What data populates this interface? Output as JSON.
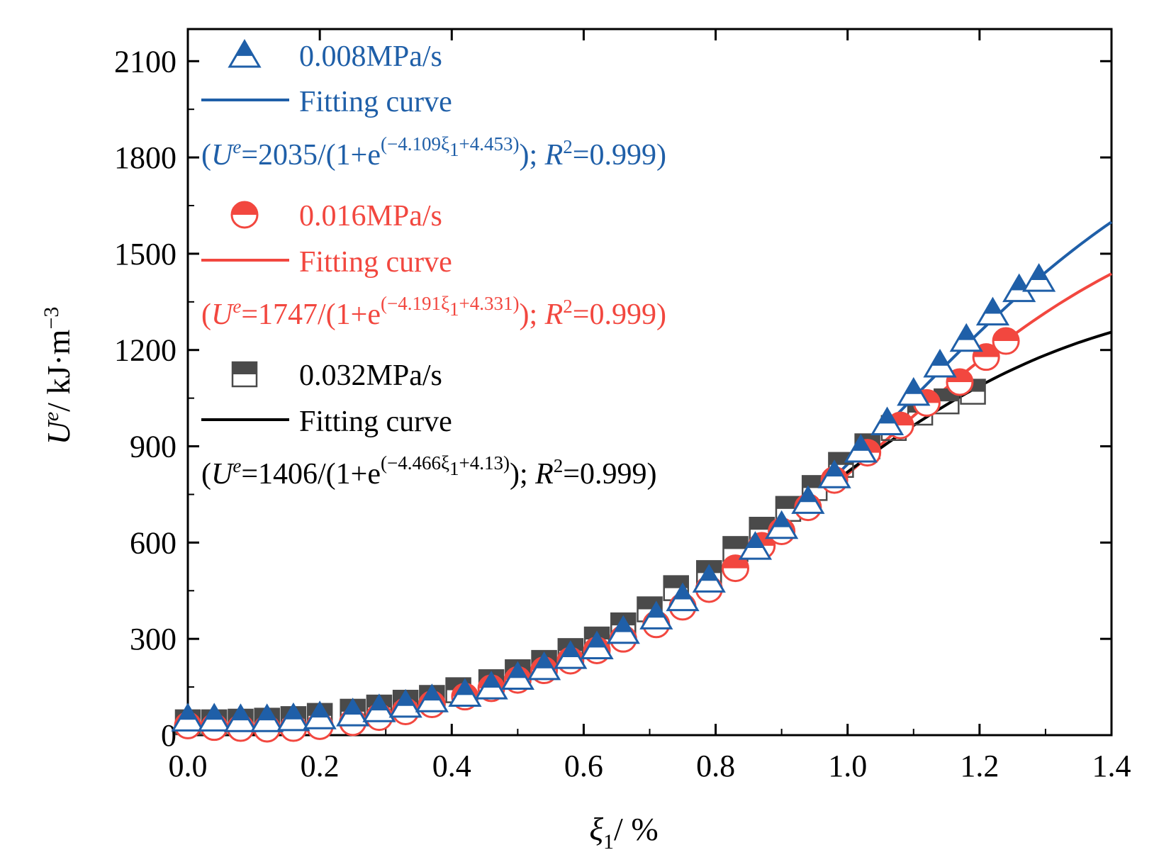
{
  "chart_data": {
    "type": "scatter",
    "title": "",
    "xlabel": "ξ1/ %",
    "ylabel": "Ue/ kJ·m−3",
    "xlim": [
      0.0,
      1.4
    ],
    "ylim": [
      0,
      2200
    ],
    "xticks": [
      0.0,
      0.2,
      0.4,
      0.6,
      0.8,
      1.0,
      1.2,
      1.4
    ],
    "xtick_labels": [
      "0.0",
      "0.2",
      "0.4",
      "0.6",
      "0.8",
      "1.0",
      "1.2",
      "1.4"
    ],
    "yticks": [
      0,
      300,
      600,
      900,
      1200,
      1500,
      1800,
      2100
    ],
    "ytick_labels": [
      "0",
      "300",
      "600",
      "900",
      "1200",
      "1500",
      "1800",
      "2100"
    ],
    "series": [
      {
        "name": "0.008MPa/s",
        "marker": "half-filled triangle",
        "color": "#1f5fa8",
        "x": [
          0.0,
          0.04,
          0.08,
          0.12,
          0.16,
          0.2,
          0.25,
          0.29,
          0.33,
          0.37,
          0.42,
          0.46,
          0.5,
          0.54,
          0.58,
          0.62,
          0.66,
          0.71,
          0.75,
          0.79,
          0.86,
          0.9,
          0.94,
          0.98,
          1.02,
          1.06,
          1.1,
          1.14,
          1.18,
          1.22,
          1.26,
          1.29
        ],
        "y": [
          50,
          50,
          48,
          48,
          51,
          57,
          66,
          79,
          93,
          110,
          127,
          150,
          180,
          210,
          245,
          275,
          323,
          368,
          425,
          483,
          585,
          650,
          728,
          808,
          888,
          973,
          1065,
          1153,
          1233,
          1315,
          1388,
          1420
        ],
        "fit": {
          "label": "Fitting curve",
          "A": 2035,
          "k": 4.109,
          "c": 4.453,
          "equation_prefix": "(",
          "equation_U": "U",
          "equation_sup_e": "e",
          "equation_mid": "=2035/(1+e",
          "equation_exp": "(−4.109ξ",
          "equation_exp_sub": "1",
          "equation_exp_tail": "+4.453)",
          "equation_close": "); ",
          "equation_R": "R",
          "equation_sup_2": "2",
          "equation_tail": "=0.999)"
        }
      },
      {
        "name": "0.016MPa/s",
        "marker": "half-filled circle",
        "color": "#f2473f",
        "x": [
          0.0,
          0.04,
          0.08,
          0.12,
          0.16,
          0.2,
          0.25,
          0.29,
          0.33,
          0.37,
          0.42,
          0.46,
          0.5,
          0.54,
          0.58,
          0.62,
          0.66,
          0.71,
          0.75,
          0.79,
          0.83,
          0.87,
          0.9,
          0.94,
          0.98,
          1.03,
          1.08,
          1.12,
          1.17,
          1.21,
          1.24
        ],
        "y": [
          30,
          25,
          22,
          20,
          22,
          28,
          40,
          56,
          74,
          96,
          120,
          146,
          172,
          202,
          232,
          264,
          300,
          345,
          400,
          455,
          520,
          590,
          635,
          710,
          795,
          880,
          965,
          1035,
          1100,
          1178,
          1228
        ],
        "fit": {
          "label": "Fitting curve",
          "A": 1747,
          "k": 4.191,
          "c": 4.331,
          "equation_prefix": "(",
          "equation_U": "U",
          "equation_sup_e": "e",
          "equation_mid": "=1747/(1+e",
          "equation_exp": "(−4.191ξ",
          "equation_exp_sub": "1",
          "equation_exp_tail": "+4.331)",
          "equation_close": "); ",
          "equation_R": "R",
          "equation_sup_2": "2",
          "equation_tail": "=0.999)"
        }
      },
      {
        "name": "0.032MPa/s",
        "marker": "half-filled square",
        "color": "#4a4a4a",
        "x": [
          0.0,
          0.04,
          0.08,
          0.12,
          0.16,
          0.2,
          0.25,
          0.29,
          0.33,
          0.37,
          0.41,
          0.46,
          0.5,
          0.54,
          0.58,
          0.62,
          0.66,
          0.7,
          0.74,
          0.79,
          0.83,
          0.87,
          0.91,
          0.95,
          0.99,
          1.03,
          1.07,
          1.11,
          1.15,
          1.19
        ],
        "y": [
          40,
          40,
          42,
          45,
          50,
          60,
          73,
          86,
          101,
          116,
          140,
          165,
          196,
          225,
          262,
          298,
          342,
          392,
          458,
          505,
          580,
          640,
          705,
          770,
          842,
          900,
          957,
          1005,
          1040,
          1070
        ],
        "fit": {
          "label": "Fitting curve",
          "A": 1406,
          "k": 4.466,
          "c": 4.13,
          "equation_prefix": "(",
          "equation_U": "U",
          "equation_sup_e": "e",
          "equation_mid": "=1406/(1+e",
          "equation_exp": "(−4.466ξ",
          "equation_exp_sub": "1",
          "equation_exp_tail": "+4.13)",
          "equation_close": "); ",
          "equation_R": "R",
          "equation_sup_2": "2",
          "equation_tail": "=0.999)"
        }
      }
    ],
    "legend": "top-left",
    "grid": false
  },
  "axis": {
    "x_symbol": "ξ",
    "x_sub": "1",
    "x_unit": "/ %",
    "y_symbol": "U",
    "y_sup": "e",
    "y_unit": "/ kJ·m",
    "y_unit_sup": "−3"
  },
  "colors": {
    "blue": "#1f5fa8",
    "red": "#f2473f",
    "dark": "#4a4a4a",
    "black": "#000000"
  }
}
